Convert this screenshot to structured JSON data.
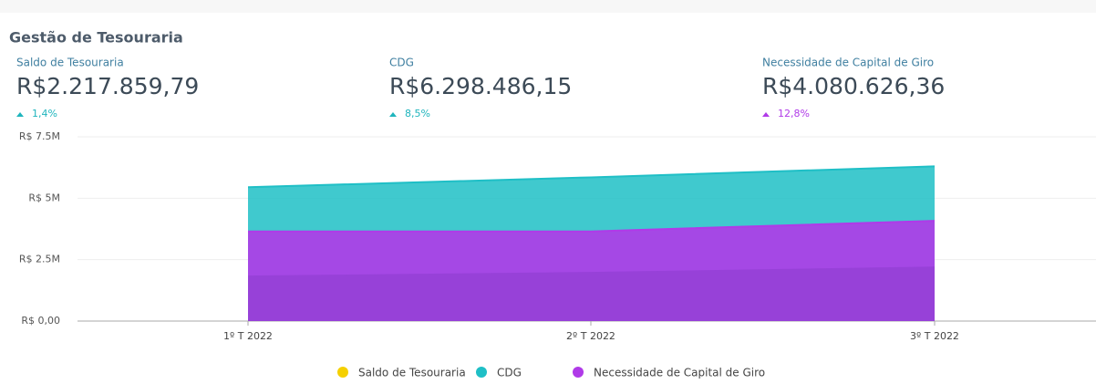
{
  "header": {
    "title": "Gestão de Tesouraria"
  },
  "kpis": [
    {
      "label": "Saldo de Tesouraria",
      "value": "R$2.217.859,79",
      "delta": "1,4%",
      "color": "#1fb5bd"
    },
    {
      "label": "CDG",
      "value": "R$6.298.486,15",
      "delta": "8,5%",
      "color": "#1fb5bd"
    },
    {
      "label": "Necessidade de Capital de Giro",
      "value": "R$4.080.626,36",
      "delta": "12,8%",
      "color": "#b03ae8"
    }
  ],
  "chart_data": {
    "type": "area",
    "categories": [
      "1º T 2022",
      "2º T 2022",
      "3º T 2022"
    ],
    "series": [
      {
        "name": "Saldo de Tesouraria",
        "color": "#f5d000",
        "values": [
          1850000,
          2000000,
          2217859.79
        ]
      },
      {
        "name": "CDG",
        "color": "#1fbfc6",
        "values": [
          5450000,
          5850000,
          6298486.15
        ]
      },
      {
        "name": "Necessidade de Capital de Giro",
        "color": "#b03ae8",
        "values": [
          3650000,
          3650000,
          4080626.36
        ]
      }
    ],
    "ylim": [
      0,
      7500000
    ],
    "yticks": [
      {
        "value": 0,
        "label": "R$ 0,00"
      },
      {
        "value": 2500000,
        "label": "R$ 2.5M"
      },
      {
        "value": 5000000,
        "label": "R$ 5M"
      },
      {
        "value": 7500000,
        "label": "R$ 7.5M"
      }
    ],
    "grid": true
  }
}
